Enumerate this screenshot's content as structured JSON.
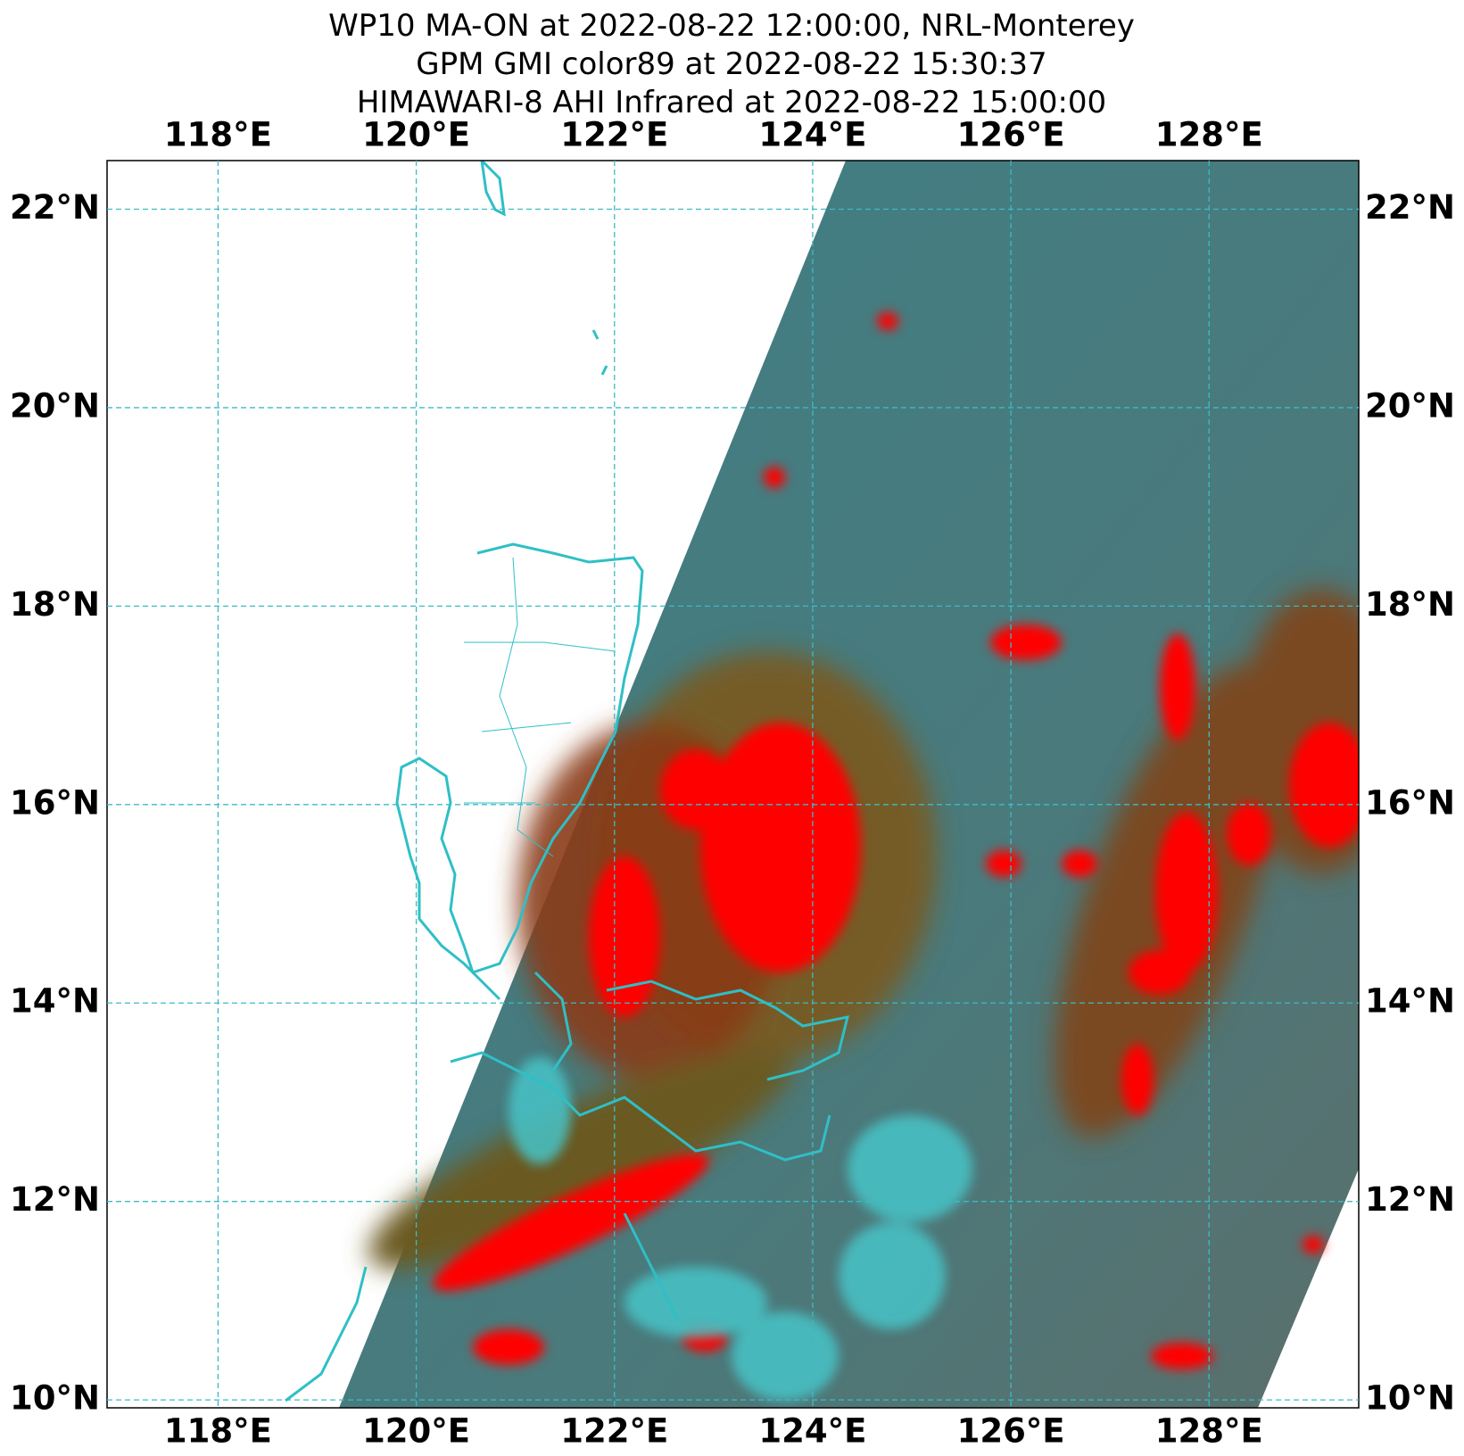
{
  "chart_data": {
    "type": "map",
    "title": [
      "WP10 MA-ON at 2022-08-22 12:00:00, NRL-Monterey",
      "GPM GMI color89 at 2022-08-22 15:30:37",
      "HIMAWARI-8 AHI Infrared at 2022-08-22 15:00:00"
    ],
    "xlim": [
      116.88,
      129.51
    ],
    "ylim": [
      9.92,
      22.49
    ],
    "xticks": [
      {
        "value": 118,
        "label": "118°E"
      },
      {
        "value": 120,
        "label": "120°E"
      },
      {
        "value": 122,
        "label": "122°E"
      },
      {
        "value": 124,
        "label": "124°E"
      },
      {
        "value": 126,
        "label": "126°E"
      },
      {
        "value": 128,
        "label": "128°E"
      }
    ],
    "yticks": [
      {
        "value": 10,
        "label": "10°N"
      },
      {
        "value": 12,
        "label": "12°N"
      },
      {
        "value": 14,
        "label": "14°N"
      },
      {
        "value": 16,
        "label": "16°N"
      },
      {
        "value": 18,
        "label": "18°N"
      },
      {
        "value": 20,
        "label": "20°N"
      },
      {
        "value": 22,
        "label": "22°N"
      }
    ],
    "grid": true,
    "grid_color": "#3bbcc4"
  }
}
